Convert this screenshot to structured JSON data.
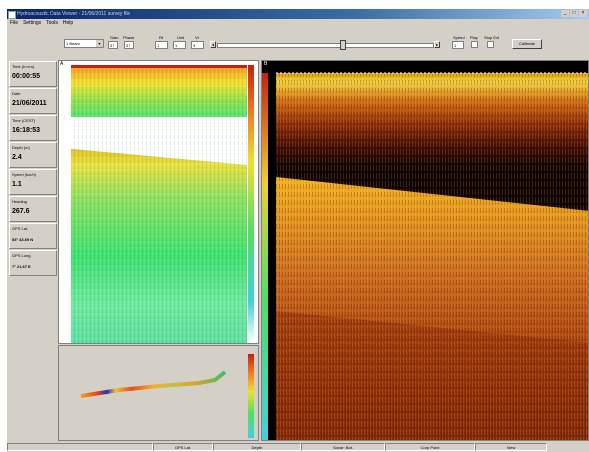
{
  "window": {
    "title": "Hydroacoustic Data Viewer - 21/06/2011 survey file"
  },
  "menu": [
    "File",
    "Settings",
    "Tools",
    "Help"
  ],
  "toolbar": {
    "mode_select": "1 Beam",
    "gain_label": "Gain",
    "gain_value": "37",
    "phase_label": "Phase",
    "phase_value": "37",
    "spin_a_label": "Rt",
    "spin_a_value": "1",
    "spin_b_label": "Unit",
    "spin_b_value": "1",
    "spin_c_label": "Vt",
    "spin_c_value": "3",
    "speed_label": "Speed",
    "speed_value": "1",
    "play_label": "Play",
    "stop_label": "Stop Ext",
    "calibrate_label": "Calibrate",
    "position_fraction": 0.58
  },
  "sidebar": [
    {
      "label": "Time (h:m:s)",
      "value": "00:00:55"
    },
    {
      "label": "Date",
      "value": "21/06/2011"
    },
    {
      "label": "Time (CEST)",
      "value": "16:18:53"
    },
    {
      "label": "Depth (m)",
      "value": "2.4"
    },
    {
      "label": "Speed (km/h)",
      "value": "1.1"
    },
    {
      "label": "Heading",
      "value": "267.6"
    },
    {
      "label": "GPS Lat.",
      "value": "53° 43.69 N"
    },
    {
      "label": "GPS Long.",
      "value": "7° 21.67 E"
    }
  ],
  "panels": {
    "left_marker": "A",
    "right_marker": "B"
  },
  "statusbar": [
    "",
    "GPS Lat.",
    "Depth",
    "Sonar: Bot.",
    "Corp Point",
    "View"
  ],
  "colors": {
    "window_bg": "#d4d0c8",
    "title_blue": "#0a246a",
    "echogram_dark": "#1a0a05",
    "echogram_orange": "#c86a18"
  }
}
